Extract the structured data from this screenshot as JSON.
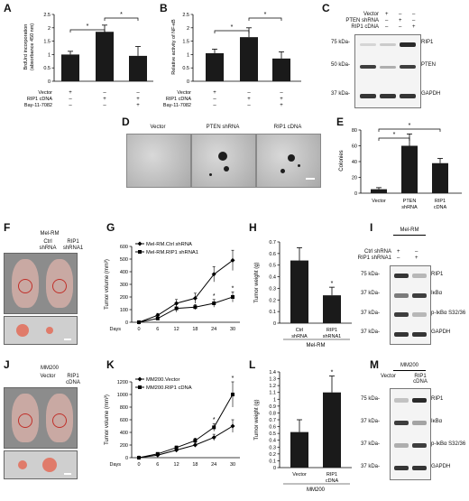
{
  "labels": {
    "A": "A",
    "B": "B",
    "C": "C",
    "D": "D",
    "E": "E",
    "F": "F",
    "G": "G",
    "H": "H",
    "I": "I",
    "J": "J",
    "K": "K",
    "L": "L",
    "M": "M"
  },
  "sig": "*",
  "panelA": {
    "ylabel_1": "BrdUrd incorporation",
    "ylabel_2": "(absorbance 450 nm)",
    "yticks": [
      "0",
      "0.5",
      "1",
      "1.5",
      "2",
      "2.5"
    ],
    "rows": [
      "Vector",
      "RIP1 cDNA",
      "Bay-11-7082"
    ],
    "signs": [
      [
        "+",
        "–",
        "–"
      ],
      [
        "–",
        "+",
        "+"
      ],
      [
        "–",
        "–",
        "+"
      ]
    ]
  },
  "panelB": {
    "ylabel": "Relative activity of NF-κB",
    "yticks": [
      "0",
      "0.5",
      "1",
      "1.5",
      "2",
      "2.5"
    ],
    "rows": [
      "Vector",
      "RIP1 cDNA",
      "Bay-11-7082"
    ],
    "signs": [
      [
        "+",
        "–",
        "–"
      ],
      [
        "–",
        "+",
        "+"
      ],
      [
        "–",
        "–",
        "+"
      ]
    ]
  },
  "panelC": {
    "rows": [
      "Vector",
      "PTEN shRNA",
      "RIP1 cDNA"
    ],
    "signs": [
      [
        "+",
        "–",
        "–"
      ],
      [
        "–",
        "+",
        "–"
      ],
      [
        "–",
        "–",
        "+"
      ]
    ],
    "markers": [
      "75 kDa-",
      "50 kDa-",
      "37 kDa-"
    ],
    "bands": [
      "RIP1",
      "PTEN",
      "GAPDH"
    ]
  },
  "panelD": {
    "labels": [
      "Vector",
      "PTEN shRNA",
      "RIP1 cDNA"
    ]
  },
  "panelE": {
    "ylabel": "Colonies",
    "yticks": [
      "0",
      "20",
      "40",
      "60",
      "80"
    ],
    "xlabels": [
      [
        "Vector"
      ],
      [
        "PTEN",
        "shRNA"
      ],
      [
        "RIP1",
        "cDNA"
      ]
    ]
  },
  "panelF": {
    "header": "Mel-RM",
    "labels": [
      [
        "Ctrl",
        "shRNA"
      ],
      [
        "RIP1",
        "shRNA1"
      ]
    ]
  },
  "panelG": {
    "ylabel": "Tumor volume (mm³)",
    "yticks": [
      "0",
      "100",
      "200",
      "300",
      "400",
      "500",
      "600"
    ],
    "xticks": [
      "0",
      "6",
      "12",
      "18",
      "24",
      "30"
    ],
    "xlabel": "Days",
    "legend": [
      "Mel-RM.Ctrl shRNA",
      "Mel-RM.RIP1 shRNA1"
    ]
  },
  "panelH": {
    "ylabel": "Tumor weight (g)",
    "yticks": [
      "0",
      "0.1",
      "0.2",
      "0.3",
      "0.4",
      "0.5",
      "0.6",
      "0.7"
    ],
    "xlabels": [
      [
        "Ctrl",
        "shRNA"
      ],
      [
        "RIP1",
        "shRNA1"
      ]
    ],
    "group": "Mel-RM"
  },
  "panelI": {
    "header": "Mel-RM",
    "rows": [
      "Ctrl shRNA",
      "RIP1 shRNA1"
    ],
    "signs": [
      [
        "+",
        "–"
      ],
      [
        "–",
        "+"
      ]
    ],
    "markers": [
      "75 kDa-",
      "37 kDa-",
      "37 kDa-",
      "37 kDa-"
    ],
    "bands": [
      "RIP1",
      "IκBα",
      "p-IκBα S32/36",
      "GAPDH"
    ]
  },
  "panelJ": {
    "header": "MM200",
    "labels": [
      [
        "Vector"
      ],
      [
        "RIP1",
        "cDNA"
      ]
    ]
  },
  "panelK": {
    "ylabel": "Tumor volume (mm³)",
    "yticks": [
      "0",
      "200",
      "400",
      "600",
      "800",
      "1000",
      "1200"
    ],
    "xticks": [
      "0",
      "6",
      "12",
      "18",
      "24",
      "30"
    ],
    "xlabel": "Days",
    "legend": [
      "MM200.Vector",
      "MM200.RIP1 cDNA"
    ]
  },
  "panelL": {
    "ylabel": "Tumor weight (g)",
    "yticks": [
      "0",
      "0.1",
      "0.2",
      "0.3",
      "0.4",
      "0.5",
      "0.6",
      "0.7",
      "0.8",
      "0.9",
      "1",
      "1.1",
      "1.2",
      "1.3",
      "1.4"
    ],
    "xlabels": [
      [
        "Vector"
      ],
      [
        "RIP1",
        "cDNA"
      ]
    ],
    "group": "MM200"
  },
  "panelM": {
    "header": "MM200",
    "cols": [
      "Vector",
      "RIP1 cDNA"
    ],
    "markers": [
      "75 kDa-",
      "37 kDa-",
      "37 kDa-",
      "37 kDa-"
    ],
    "bands": [
      "RIP1",
      "IκBα",
      "p-IκBα S32/36",
      "GAPDH"
    ]
  },
  "chart_data": [
    {
      "id": "A",
      "type": "bar",
      "categories": [
        "Vector",
        "RIP1 cDNA",
        "RIP1 cDNA + Bay-11-7082"
      ],
      "values": [
        1.0,
        1.85,
        0.95
      ],
      "errors": [
        0.12,
        0.25,
        0.35
      ],
      "ylim": [
        0,
        2.5
      ]
    },
    {
      "id": "B",
      "type": "bar",
      "categories": [
        "Vector",
        "RIP1 cDNA",
        "RIP1 cDNA + Bay-11-7082"
      ],
      "values": [
        1.05,
        1.65,
        0.85
      ],
      "errors": [
        0.15,
        0.35,
        0.25
      ],
      "ylim": [
        0,
        2.5
      ]
    },
    {
      "id": "E",
      "type": "bar",
      "categories": [
        "Vector",
        "PTEN shRNA",
        "RIP1 cDNA"
      ],
      "values": [
        5,
        60,
        38
      ],
      "errors": [
        2,
        15,
        6
      ],
      "ylim": [
        0,
        80
      ]
    },
    {
      "id": "G",
      "type": "line",
      "x": [
        0,
        6,
        12,
        18,
        24,
        30
      ],
      "series": [
        {
          "name": "Mel-RM.Ctrl shRNA",
          "values": [
            0,
            55,
            150,
            190,
            380,
            490
          ],
          "errors": [
            0,
            15,
            30,
            40,
            60,
            80
          ]
        },
        {
          "name": "Mel-RM.RIP1 shRNA1",
          "values": [
            0,
            30,
            110,
            120,
            150,
            200
          ],
          "errors": [
            0,
            10,
            30,
            20,
            30,
            40
          ]
        }
      ],
      "ylim": [
        0,
        600
      ]
    },
    {
      "id": "H",
      "type": "bar",
      "categories": [
        "Ctrl shRNA",
        "RIP1 shRNA1"
      ],
      "values": [
        0.54,
        0.24
      ],
      "errors": [
        0.11,
        0.07
      ],
      "ylim": [
        0,
        0.7
      ]
    },
    {
      "id": "K",
      "type": "line",
      "x": [
        0,
        6,
        12,
        18,
        24,
        30
      ],
      "series": [
        {
          "name": "MM200.Vector",
          "values": [
            0,
            40,
            120,
            200,
            320,
            500
          ],
          "errors": [
            0,
            15,
            20,
            30,
            50,
            100
          ]
        },
        {
          "name": "MM200.RIP1 cDNA",
          "values": [
            0,
            60,
            160,
            270,
            480,
            1000
          ],
          "errors": [
            0,
            15,
            25,
            40,
            60,
            200
          ]
        }
      ],
      "ylim": [
        0,
        1200
      ]
    },
    {
      "id": "L",
      "type": "bar",
      "categories": [
        "Vector",
        "RIP1 cDNA"
      ],
      "values": [
        0.52,
        1.1
      ],
      "errors": [
        0.18,
        0.24
      ],
      "ylim": [
        0,
        1.4
      ]
    }
  ]
}
